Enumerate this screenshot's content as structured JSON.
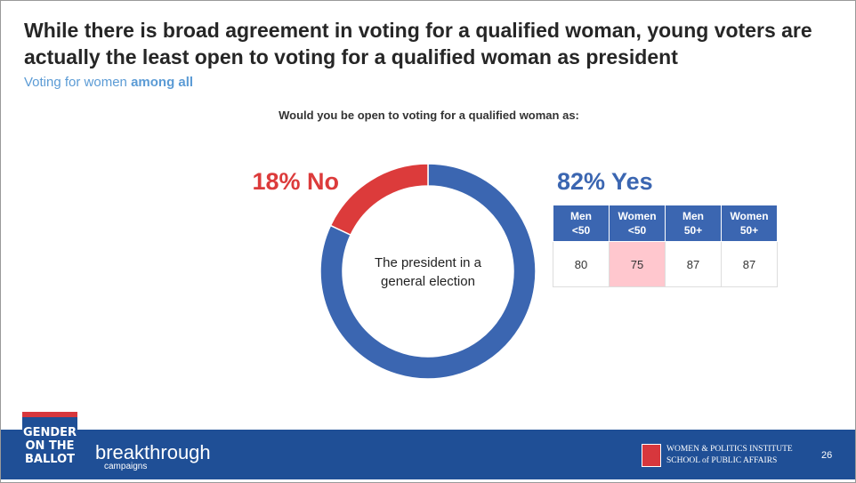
{
  "header": {
    "title": "While there is broad agreement in voting for a qualified woman, young voters are actually the least open to voting for a qualified woman as president",
    "subtitle": "Voting for women",
    "subtitle_bold": "among all"
  },
  "question": "Would you be open to voting for a qualified woman as:",
  "chart_data": {
    "type": "donut",
    "values": [
      82,
      18
    ],
    "value_labels": [
      "82% Yes",
      "18% No"
    ],
    "colors": [
      "#3b66b1",
      "#dc3b3b"
    ],
    "center_label": "The president in a general election"
  },
  "table": {
    "headers": [
      [
        "Men",
        "<50"
      ],
      [
        "Women",
        "<50"
      ],
      [
        "Men",
        "50+"
      ],
      [
        "Women",
        "50+"
      ]
    ],
    "rows": [
      [
        80,
        75,
        87,
        87
      ]
    ],
    "highlight_column": 1,
    "highlight_color": "#ffc7ce"
  },
  "footer": {
    "logo_left": "GENDER ON THE BALLOT",
    "logo_middle": "breakthrough",
    "logo_middle_sub": "campaigns",
    "logo_right_1": "WOMEN & POLITICS INSTITUTE",
    "logo_right_2": "SCHOOL of PUBLIC AFFAIRS",
    "page": "26"
  }
}
